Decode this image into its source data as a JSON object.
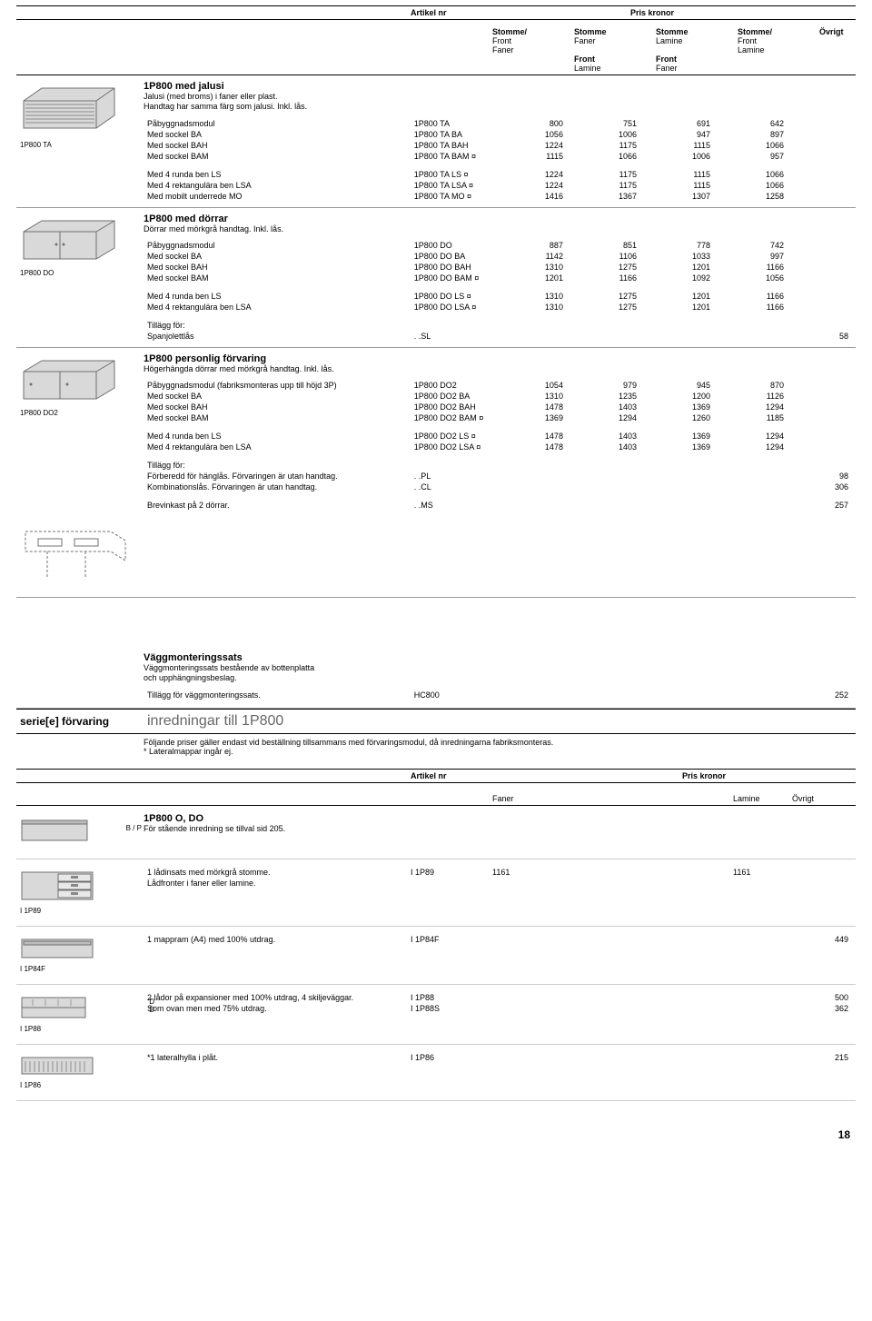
{
  "header": {
    "artikel": "Artikel nr",
    "pris": "Pris kronor",
    "cols": [
      {
        "l1": "Stomme/",
        "l2": "Front",
        "l3": "Faner"
      },
      {
        "l1": "Stomme",
        "l2": "Faner",
        "l3": "",
        "l4": "Front",
        "l5": "Lamine"
      },
      {
        "l1": "Stomme",
        "l2": "Lamine",
        "l3": "",
        "l4": "Front",
        "l5": "Faner"
      },
      {
        "l1": "Stomme/",
        "l2": "Front",
        "l3": "Lamine"
      }
    ],
    "ovrigt": "Övrigt"
  },
  "colors": {
    "text": "#000000",
    "border": "#000000",
    "thumb_fill": "#d9d9d9",
    "thumb_stroke": "#707070",
    "grey_text": "#666666"
  },
  "sections": [
    {
      "thumb_label": "1P800 TA",
      "title": "1P800 med jalusi",
      "desc": "Jalusi (med broms) i faner eller plast.\nHandtag har samma färg som jalusi. Inkl. lås.",
      "groups": [
        [
          {
            "d": "Påbyggnadsmodul",
            "a": "1P800 TA",
            "v": [
              "800",
              "751",
              "691",
              "642"
            ],
            "o": ""
          },
          {
            "d": "Med sockel BA",
            "a": "1P800 TA BA",
            "v": [
              "1056",
              "1006",
              "947",
              "897"
            ],
            "o": ""
          },
          {
            "d": "Med sockel BAH",
            "a": "1P800 TA BAH",
            "v": [
              "1224",
              "1175",
              "1115",
              "1066"
            ],
            "o": ""
          },
          {
            "d": "Med sockel BAM",
            "a": "1P800 TA BAM ¤",
            "v": [
              "1115",
              "1066",
              "1006",
              "957"
            ],
            "o": ""
          }
        ],
        [
          {
            "d": "Med 4 runda ben LS",
            "a": "1P800 TA LS ¤",
            "v": [
              "1224",
              "1175",
              "1115",
              "1066"
            ],
            "o": ""
          },
          {
            "d": "Med 4 rektangulära ben LSA",
            "a": "1P800 TA LSA ¤",
            "v": [
              "1224",
              "1175",
              "1115",
              "1066"
            ],
            "o": ""
          },
          {
            "d": "Med mobilt underrede MO",
            "a": "1P800 TA MO ¤",
            "v": [
              "1416",
              "1367",
              "1307",
              "1258"
            ],
            "o": ""
          }
        ]
      ],
      "addons": []
    },
    {
      "thumb_label": "1P800 DO",
      "title": "1P800 med dörrar",
      "desc": "Dörrar med mörkgrå handtag. Inkl. lås.",
      "groups": [
        [
          {
            "d": "Påbyggnadsmodul",
            "a": "1P800 DO",
            "v": [
              "887",
              "851",
              "778",
              "742"
            ],
            "o": ""
          },
          {
            "d": "Med sockel BA",
            "a": "1P800 DO BA",
            "v": [
              "1142",
              "1106",
              "1033",
              "997"
            ],
            "o": ""
          },
          {
            "d": "Med sockel BAH",
            "a": "1P800 DO BAH",
            "v": [
              "1310",
              "1275",
              "1201",
              "1166"
            ],
            "o": ""
          },
          {
            "d": "Med sockel BAM",
            "a": "1P800 DO BAM ¤",
            "v": [
              "1201",
              "1166",
              "1092",
              "1056"
            ],
            "o": ""
          }
        ],
        [
          {
            "d": "Med 4 runda ben LS",
            "a": "1P800 DO LS ¤",
            "v": [
              "1310",
              "1275",
              "1201",
              "1166"
            ],
            "o": ""
          },
          {
            "d": "Med 4 rektangulära ben LSA",
            "a": "1P800 DO LSA ¤",
            "v": [
              "1310",
              "1275",
              "1201",
              "1166"
            ],
            "o": ""
          }
        ]
      ],
      "addons": [
        {
          "label": "Tillägg för:",
          "rows": [
            {
              "d": "Spanjolettlås",
              "a": ". .SL",
              "o": "58"
            }
          ]
        }
      ]
    },
    {
      "thumb_label": "1P800 DO2",
      "title": "1P800 personlig förvaring",
      "desc": "Högerhängda dörrar med mörkgrå handtag. Inkl. lås.",
      "groups": [
        [
          {
            "d": "Påbyggnadsmodul (fabriksmonteras upp till höjd 3P)",
            "a": "1P800 DO2",
            "v": [
              "1054",
              "979",
              "945",
              "870"
            ],
            "o": ""
          },
          {
            "d": "Med sockel BA",
            "a": "1P800 DO2 BA",
            "v": [
              "1310",
              "1235",
              "1200",
              "1126"
            ],
            "o": ""
          },
          {
            "d": "Med sockel BAH",
            "a": "1P800 DO2 BAH",
            "v": [
              "1478",
              "1403",
              "1369",
              "1294"
            ],
            "o": ""
          },
          {
            "d": "Med sockel BAM",
            "a": "1P800 DO2 BAM ¤",
            "v": [
              "1369",
              "1294",
              "1260",
              "1185"
            ],
            "o": ""
          }
        ],
        [
          {
            "d": "Med 4 runda ben LS",
            "a": "1P800 DO2 LS ¤",
            "v": [
              "1478",
              "1403",
              "1369",
              "1294"
            ],
            "o": ""
          },
          {
            "d": "Med 4 rektangulära ben LSA",
            "a": "1P800 DO2 LSA ¤",
            "v": [
              "1478",
              "1403",
              "1369",
              "1294"
            ],
            "o": ""
          }
        ]
      ],
      "addons": [
        {
          "label": "Tillägg för:",
          "rows": [
            {
              "d": "Förberedd för hänglås. Förvaringen är utan handtag.",
              "a": ". .PL",
              "o": "98"
            },
            {
              "d": "Kombinationslås. Förvaringen är utan handtag.",
              "a": ". .CL",
              "o": "306"
            }
          ]
        },
        {
          "label": "",
          "rows": [
            {
              "d": "Brevinkast på 2 dörrar.",
              "a": ". .MS",
              "o": "257"
            }
          ]
        }
      ]
    }
  ],
  "wallmount": {
    "title": "Väggmonteringssats",
    "desc": "Väggmonteringssats bestående av bottenplatta\noch upphängningsbeslag.",
    "row": {
      "d": "Tillägg för väggmonteringssats.",
      "a": "HC800",
      "o": "252"
    }
  },
  "series": {
    "left": "serie[e] förvaring",
    "right": "inredningar till 1P800",
    "note": "Följande priser gäller endast vid beställning tillsammans med förvaringsmodul, då inredningarna fabriksmonteras.\n* Lateralmappar ingår ej."
  },
  "sub_header": {
    "artikel": "Artikel nr",
    "pris": "Pris kronor",
    "c1": "Faner",
    "c2": "Lamine",
    "c3": "Övrigt"
  },
  "inredningar": [
    {
      "thumb_label": "B / P",
      "title": "1P800 O, DO",
      "desc": "För stående inredning se tillval sid 205.",
      "rows": []
    },
    {
      "thumb_label": "I 1P89",
      "rows": [
        {
          "d": "1 lådinsats med mörkgrå stomme.",
          "a": "I 1P89",
          "n1": "1161",
          "n2": "1161",
          "n3": ""
        },
        {
          "d": "Lådfronter i faner eller lamine.",
          "a": "",
          "n1": "",
          "n2": "",
          "n3": ""
        }
      ]
    },
    {
      "thumb_label": "I 1P84F",
      "rows": [
        {
          "d": "1 mappram (A4) med 100% utdrag.",
          "a": "I 1P84F",
          "n1": "",
          "n2": "",
          "n3": "449"
        }
      ]
    },
    {
      "thumb_label": "I 1P88",
      "side": "D\nD",
      "rows": [
        {
          "d": "2 lådor på expansioner med 100% utdrag, 4 skiljeväggar.",
          "a": "I 1P88",
          "n1": "",
          "n2": "",
          "n3": "500"
        },
        {
          "d": "Som ovan men med 75% utdrag.",
          "a": "I 1P88S",
          "n1": "",
          "n2": "",
          "n3": "362"
        }
      ]
    },
    {
      "thumb_label": "I 1P86",
      "rows": [
        {
          "d": "*1 lateralhylla i plåt.",
          "a": "I 1P86",
          "n1": "",
          "n2": "",
          "n3": "215"
        }
      ]
    }
  ],
  "page_number": "18"
}
